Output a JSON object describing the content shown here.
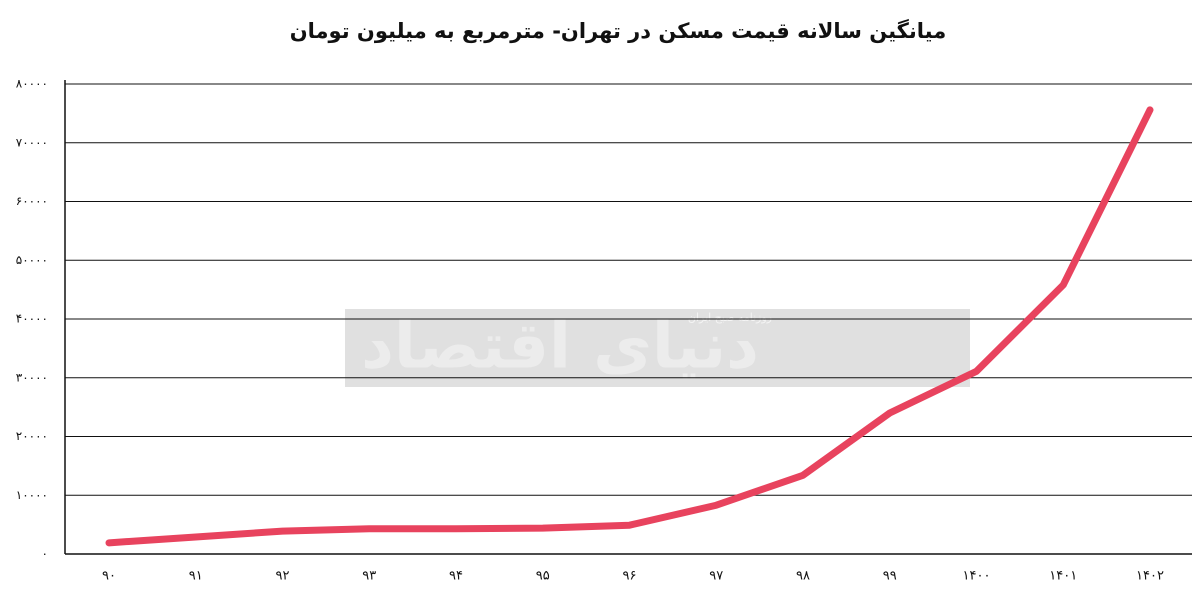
{
  "chart_data": {
    "type": "line",
    "title": "میانگین سالانه قیمت مسکن در تهران- مترمربع به میلیون تومان",
    "categories": [
      "۹۰",
      "۹۱",
      "۹۲",
      "۹۳",
      "۹۴",
      "۹۵",
      "۹۶",
      "۹۷",
      "۹۸",
      "۹۹",
      "۱۴۰۰",
      "۱۴۰۱",
      "۱۴۰۲"
    ],
    "values": [
      1900,
      2900,
      3900,
      4300,
      4300,
      4400,
      4900,
      8300,
      13400,
      24000,
      31100,
      45800,
      75600
    ],
    "color": "#e8435e",
    "ylim": [
      0,
      80000
    ],
    "yticks": [
      {
        "value": 0,
        "label": "۰"
      },
      {
        "value": 10000,
        "label": "۱۰۰۰۰"
      },
      {
        "value": 20000,
        "label": "۲۰۰۰۰"
      },
      {
        "value": 30000,
        "label": "۳۰۰۰۰"
      },
      {
        "value": 40000,
        "label": "۴۰۰۰۰"
      },
      {
        "value": 50000,
        "label": "۵۰۰۰۰"
      },
      {
        "value": 60000,
        "label": "۶۰۰۰۰"
      },
      {
        "value": 70000,
        "label": "۷۰۰۰۰"
      },
      {
        "value": 80000,
        "label": "۸۰۰۰۰"
      }
    ],
    "grid": true,
    "watermark": {
      "title": "دنیای اقتصاد",
      "subtitle": "روزنامه صبح ایران"
    }
  }
}
